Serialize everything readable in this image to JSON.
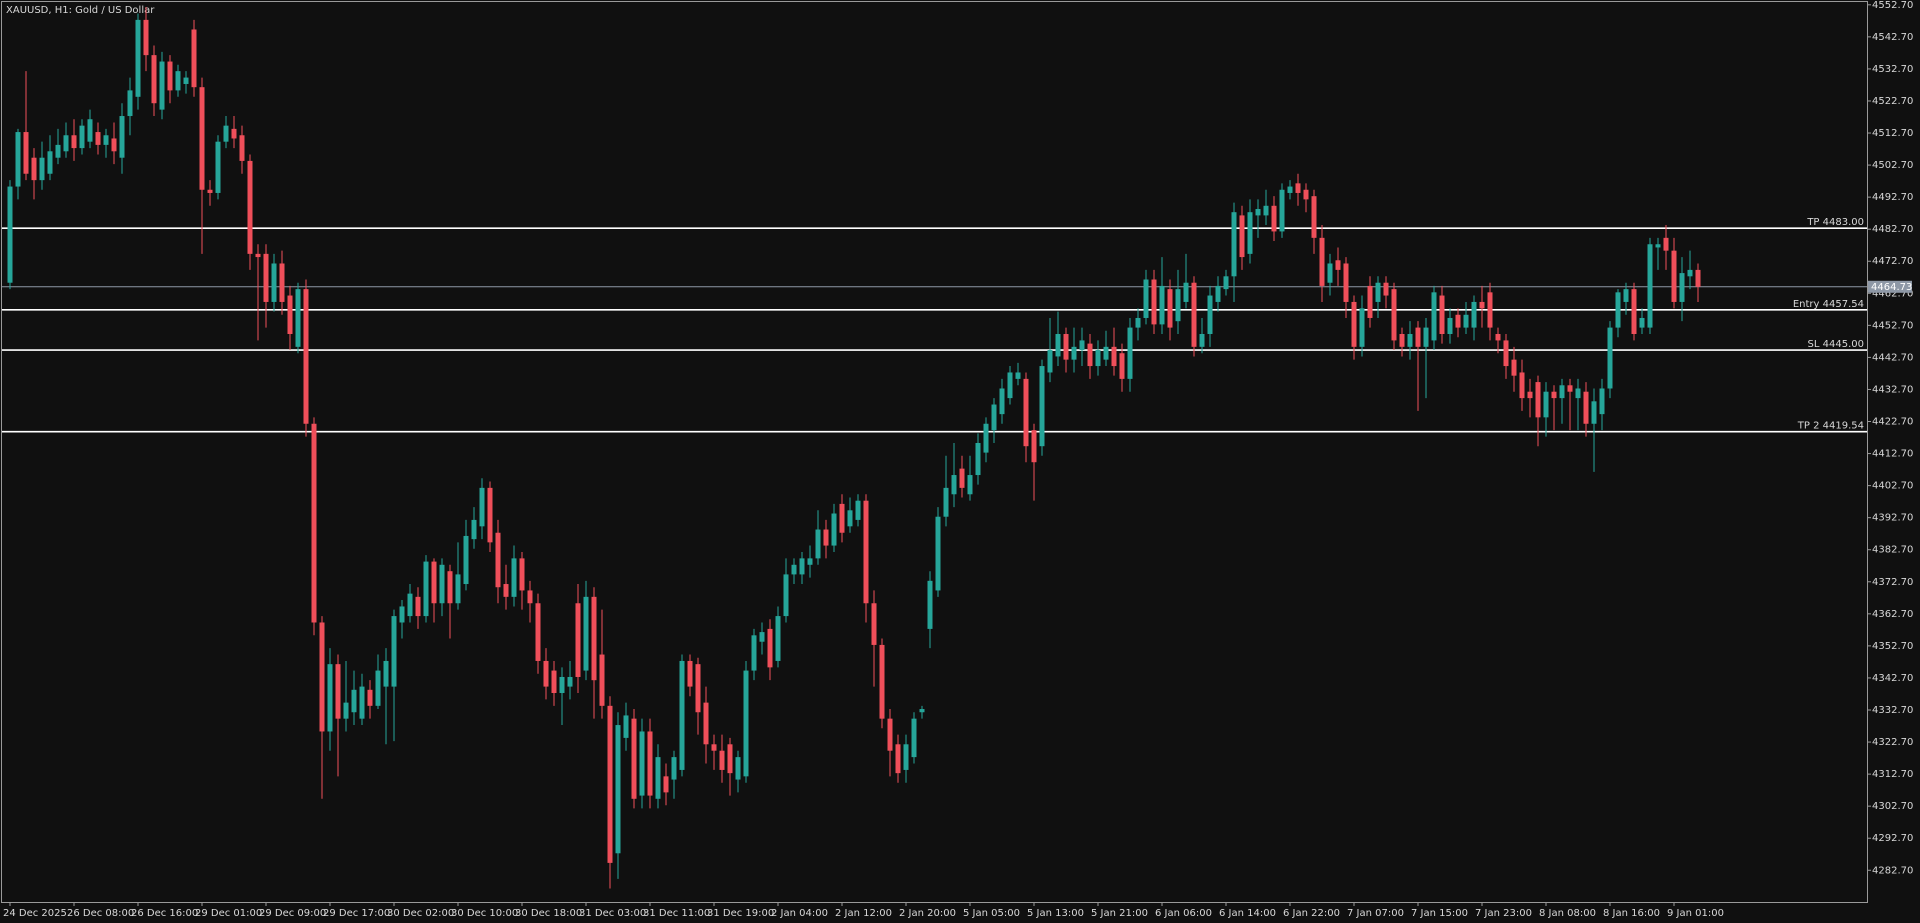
{
  "chart_data": {
    "type": "candlestick",
    "title": "XAUUSD, H1:  Gold / US Dollar",
    "categories": [
      "24 Dec 2025",
      null,
      null,
      null,
      null,
      null,
      null,
      null,
      "26 Dec 08:00",
      null,
      null,
      null,
      null,
      null,
      null,
      null,
      "26 Dec 16:00",
      null,
      null,
      null,
      null,
      null,
      null,
      null,
      "29 Dec 01:00",
      null,
      null,
      null,
      null,
      null,
      null,
      null,
      "29 Dec 09:00",
      null,
      null,
      null,
      null,
      null,
      null,
      null,
      "29 Dec 17:00",
      null,
      null,
      null,
      null,
      null,
      null,
      null,
      "30 Dec 02:00",
      null,
      null,
      null,
      null,
      null,
      null,
      null,
      "30 Dec 10:00",
      null,
      null,
      null,
      null,
      null,
      null,
      null,
      "30 Dec 18:00",
      null,
      null,
      null,
      null,
      null,
      null,
      null,
      "31 Dec 03:00",
      null,
      null,
      null,
      null,
      null,
      null,
      null,
      "31 Dec 11:00",
      null,
      null,
      null,
      null,
      null,
      null,
      null,
      "31 Dec 19:00",
      null,
      null,
      null,
      null,
      null,
      null,
      null,
      "2 Jan 04:00",
      null,
      null,
      null,
      null,
      null,
      null,
      null,
      "2 Jan 12:00",
      null,
      null,
      null,
      null,
      null,
      null,
      null,
      "2 Jan 20:00",
      null,
      null,
      null,
      null,
      null,
      null,
      null,
      "5 Jan 05:00",
      null,
      null,
      null,
      null,
      null,
      null,
      null,
      "5 Jan 13:00",
      null,
      null,
      null,
      null,
      null,
      null,
      null,
      "5 Jan 21:00",
      null,
      null,
      null,
      null,
      null,
      null,
      null,
      "6 Jan 06:00",
      null,
      null,
      null,
      null,
      null,
      null,
      null,
      "6 Jan 14:00",
      null,
      null,
      null,
      null,
      null,
      null,
      null,
      "6 Jan 22:00",
      null,
      null,
      null,
      null,
      null,
      null,
      null,
      "7 Jan 07:00",
      null,
      null,
      null,
      null,
      null,
      null,
      null,
      "7 Jan 15:00",
      null,
      null,
      null,
      null,
      null,
      null,
      null,
      "7 Jan 23:00",
      null,
      null,
      null,
      null,
      null,
      null,
      null,
      "8 Jan 08:00",
      null,
      null,
      null,
      null,
      null,
      null,
      null,
      "8 Jan 16:00",
      null,
      null,
      null,
      null,
      null,
      null,
      null,
      "9 Jan 01:00",
      null,
      null,
      null
    ],
    "open": [
      4466,
      4496,
      4513,
      4505,
      4498,
      4500,
      4505,
      4507,
      4512,
      4508,
      4510,
      4513,
      4509,
      4511,
      4505,
      4518,
      4524,
      4548,
      4537,
      4520,
      4535,
      4526,
      4528,
      4545,
      4527,
      4495,
      4494,
      4510,
      4514,
      4512,
      4504,
      4475,
      4475,
      4460,
      4472,
      4462,
      4446,
      4464,
      4422,
      4360,
      4326,
      4347,
      4330,
      4332,
      4330,
      4339,
      4334,
      4340,
      4340,
      4360,
      4362,
      4368,
      4362,
      4379,
      4366,
      4376,
      4366,
      4372,
      4386,
      4390,
      4402,
      4388,
      4372,
      4368,
      4380,
      4370,
      4366,
      4348,
      4345,
      4338,
      4340,
      4366,
      4345,
      4368,
      4350,
      4334,
      4288,
      4324,
      4330,
      4306,
      4326,
      4305,
      4312,
      4311,
      4314,
      4348,
      4347,
      4335,
      4322,
      4320,
      4322,
      4311,
      4312,
      4345,
      4354,
      4358,
      4348,
      4362,
      4375,
      4375,
      4378,
      4380,
      4389,
      4384,
      4397,
      4390,
      4392,
      4398,
      4366,
      4353,
      4330,
      4322,
      4314,
      4318,
      4332,
      4358,
      4370,
      4393,
      4400,
      4408,
      4400,
      4406,
      4413,
      4420,
      4425,
      4430,
      4436,
      4436,
      4420,
      4415,
      4438,
      4443,
      4450,
      4442,
      4445,
      4447,
      4440,
      4442,
      4446,
      4444,
      4436,
      4452,
      4455,
      4467,
      4453,
      4464,
      4454,
      4460,
      4466,
      4446,
      4450,
      4460,
      4464,
      4468,
      4487,
      4475,
      4487,
      4487,
      4490,
      4482,
      4494,
      4497,
      4495,
      4493,
      4480,
      4466,
      4473,
      4472,
      4460,
      4446,
      4465,
      4460,
      4466,
      4464,
      4450,
      4446,
      4452,
      4446,
      4448,
      4462,
      4450,
      4456,
      4452,
      4452,
      4460,
      4463,
      4450,
      4448,
      4442,
      4438,
      4432,
      4435,
      4424,
      4432,
      4430,
      4434,
      4430,
      4432,
      4422,
      4425,
      4433,
      4452,
      4460,
      4464,
      4452,
      4452,
      4477,
      4480,
      4476,
      4460,
      4468,
      4470
    ],
    "high": [
      4498,
      4514,
      4532,
      4508,
      4510,
      4512,
      4514,
      4516,
      4517,
      4517,
      4520,
      4516,
      4514,
      4516,
      4522,
      4530,
      4550,
      4552,
      4540,
      4538,
      4537,
      4534,
      4532,
      4548,
      4530,
      4498,
      4512,
      4518,
      4518,
      4515,
      4506,
      4478,
      4478,
      4475,
      4476,
      4465,
      4466,
      4467,
      4424,
      4362,
      4352,
      4350,
      4348,
      4345,
      4344,
      4342,
      4350,
      4352,
      4364,
      4367,
      4372,
      4371,
      4381,
      4380,
      4380,
      4378,
      4385,
      4392,
      4396,
      4405,
      4404,
      4392,
      4378,
      4384,
      4382,
      4373,
      4369,
      4352,
      4348,
      4346,
      4348,
      4372,
      4373,
      4371,
      4364,
      4337,
      4332,
      4335,
      4333,
      4330,
      4330,
      4322,
      4316,
      4320,
      4350,
      4350,
      4349,
      4340,
      4325,
      4325,
      4324,
      4320,
      4348,
      4358,
      4360,
      4361,
      4365,
      4380,
      4380,
      4382,
      4384,
      4395,
      4392,
      4397,
      4400,
      4399,
      4400,
      4400,
      4370,
      4355,
      4333,
      4325,
      4325,
      4332,
      4334,
      4376,
      4396,
      4412,
      4416,
      4412,
      4412,
      4419,
      4424,
      4430,
      4436,
      4440,
      4441,
      4438,
      4422,
      4442,
      4455,
      4457,
      4452,
      4452,
      4452,
      4450,
      4448,
      4451,
      4452,
      4447,
      4455,
      4458,
      4470,
      4470,
      4474,
      4467,
      4470,
      4475,
      4468,
      4455,
      4465,
      4468,
      4470,
      4491,
      4490,
      4492,
      4492,
      4495,
      4493,
      4497,
      4498,
      4500,
      4497,
      4495,
      4484,
      4475,
      4477,
      4474,
      4462,
      4462,
      4468,
      4468,
      4468,
      4466,
      4452,
      4454,
      4454,
      4455,
      4465,
      4465,
      4458,
      4458,
      4460,
      4462,
      4465,
      4466,
      4452,
      4450,
      4446,
      4442,
      4436,
      4437,
      4435,
      4434,
      4436,
      4436,
      4436,
      4435,
      4433,
      4436,
      4454,
      4464,
      4466,
      4466,
      4458,
      4480,
      4480,
      4484,
      4480,
      4474,
      4476,
      4472
    ],
    "low": [
      4464,
      4492,
      4498,
      4492,
      4495,
      4498,
      4503,
      4505,
      4504,
      4506,
      4508,
      4506,
      4505,
      4503,
      4500,
      4512,
      4520,
      4532,
      4518,
      4517,
      4522,
      4524,
      4525,
      4524,
      4475,
      4490,
      4492,
      4508,
      4508,
      4500,
      4470,
      4448,
      4452,
      4457,
      4456,
      4445,
      4444,
      4418,
      4356,
      4305,
      4320,
      4312,
      4326,
      4328,
      4328,
      4330,
      4333,
      4322,
      4323,
      4355,
      4360,
      4358,
      4360,
      4360,
      4362,
      4355,
      4364,
      4370,
      4383,
      4386,
      4382,
      4366,
      4364,
      4365,
      4364,
      4360,
      4344,
      4336,
      4334,
      4328,
      4336,
      4338,
      4342,
      4330,
      4330,
      4277,
      4280,
      4320,
      4302,
      4302,
      4302,
      4302,
      4303,
      4305,
      4312,
      4337,
      4325,
      4316,
      4314,
      4310,
      4306,
      4307,
      4310,
      4342,
      4350,
      4342,
      4346,
      4360,
      4372,
      4372,
      4374,
      4378,
      4380,
      4382,
      4385,
      4388,
      4390,
      4360,
      4340,
      4327,
      4312,
      4310,
      4310,
      4316,
      4330,
      4352,
      4368,
      4390,
      4396,
      4399,
      4398,
      4403,
      4410,
      4416,
      4422,
      4428,
      4434,
      4410,
      4398,
      4412,
      4435,
      4440,
      4438,
      4438,
      4440,
      4436,
      4437,
      4440,
      4437,
      4432,
      4432,
      4448,
      4453,
      4450,
      4450,
      4448,
      4450,
      4458,
      4443,
      4444,
      4446,
      4457,
      4462,
      4460,
      4470,
      4472,
      4480,
      4484,
      4479,
      4480,
      4492,
      4490,
      4488,
      4475,
      4460,
      4462,
      4465,
      4455,
      4442,
      4443,
      4452,
      4455,
      4458,
      4445,
      4443,
      4442,
      4426,
      4430,
      4445,
      4447,
      4447,
      4449,
      4450,
      4448,
      4452,
      4448,
      4444,
      4436,
      4432,
      4426,
      4424,
      4415,
      4418,
      4420,
      4422,
      4420,
      4420,
      4418,
      4407,
      4420,
      4430,
      4449,
      4456,
      4448,
      4450,
      4450,
      4470,
      4470,
      4458,
      4454,
      4464,
      4460
    ],
    "close": [
      4496,
      4513,
      4500,
      4498,
      4505,
      4507,
      4509,
      4512,
      4508,
      4515,
      4517,
      4509,
      4512,
      4507,
      4518,
      4526,
      4548,
      4537,
      4522,
      4535,
      4526,
      4532,
      4530,
      4527,
      4495,
      4494,
      4510,
      4515,
      4511,
      4504,
      4475,
      4474,
      4460,
      4472,
      4460,
      4450,
      4464,
      4422,
      4360,
      4326,
      4347,
      4330,
      4335,
      4339,
      4340,
      4334,
      4345,
      4348,
      4362,
      4365,
      4369,
      4362,
      4379,
      4366,
      4378,
      4366,
      4375,
      4387,
      4392,
      4402,
      4385,
      4371,
      4368,
      4380,
      4370,
      4366,
      4348,
      4340,
      4338,
      4343,
      4343,
      4343,
      4368,
      4342,
      4334,
      4285,
      4328,
      4331,
      4305,
      4326,
      4306,
      4318,
      4307,
      4318,
      4348,
      4340,
      4332,
      4322,
      4320,
      4314,
      4313,
      4318,
      4345,
      4356,
      4357,
      4346,
      4362,
      4375,
      4378,
      4380,
      4380,
      4389,
      4384,
      4394,
      4388,
      4395,
      4398,
      4366,
      4353,
      4330,
      4320,
      4313,
      4322,
      4330,
      4333,
      4373,
      4393,
      4402,
      4406,
      4402,
      4406,
      4416,
      4422,
      4428,
      4433,
      4438,
      4438,
      4415,
      4410,
      4440,
      4445,
      4450,
      4442,
      4446,
      4448,
      4440,
      4445,
      4446,
      4440,
      4436,
      4452,
      4455,
      4467,
      4453,
      4465,
      4452,
      4464,
      4466,
      4446,
      4450,
      4462,
      4465,
      4468,
      4488,
      4474,
      4488,
      4489,
      4490,
      4482,
      4495,
      4496,
      4494,
      4492,
      4480,
      4465,
      4472,
      4470,
      4460,
      4446,
      4458,
      4455,
      4466,
      4462,
      4448,
      4446,
      4450,
      4446,
      4452,
      4463,
      4450,
      4455,
      4452,
      4456,
      4460,
      4458,
      4452,
      4448,
      4440,
      4437,
      4430,
      4430,
      4424,
      4432,
      4430,
      4434,
      4432,
      4433,
      4422,
      4429,
      4433,
      4452,
      4463,
      4464,
      4450,
      4455,
      4478,
      4478,
      4476,
      4460,
      4469,
      4470,
      4464.73
    ],
    "up_color": "#26a69a",
    "down_color": "#ef4f5a",
    "ylim": [
      4272.8,
      4554.2
    ],
    "yticks": [
      {
        "value": 4552.7,
        "label": "4552.70"
      },
      {
        "value": 4542.7,
        "label": "4542.70"
      },
      {
        "value": 4532.7,
        "label": "4532.70"
      },
      {
        "value": 4522.7,
        "label": "4522.70"
      },
      {
        "value": 4512.7,
        "label": "4512.70"
      },
      {
        "value": 4502.7,
        "label": "4502.70"
      },
      {
        "value": 4492.7,
        "label": "4492.70"
      },
      {
        "value": 4482.7,
        "label": "4482.70"
      },
      {
        "value": 4472.7,
        "label": "4472.70"
      },
      {
        "value": 4462.7,
        "label": "4462.70"
      },
      {
        "value": 4452.7,
        "label": "4452.70"
      },
      {
        "value": 4442.7,
        "label": "4442.70"
      },
      {
        "value": 4432.7,
        "label": "4432.70"
      },
      {
        "value": 4422.7,
        "label": "4422.70"
      },
      {
        "value": 4412.7,
        "label": "4412.70"
      },
      {
        "value": 4402.7,
        "label": "4402.70"
      },
      {
        "value": 4392.7,
        "label": "4392.70"
      },
      {
        "value": 4382.7,
        "label": "4382.70"
      },
      {
        "value": 4372.7,
        "label": "4372.70"
      },
      {
        "value": 4362.7,
        "label": "4362.70"
      },
      {
        "value": 4352.7,
        "label": "4352.70"
      },
      {
        "value": 4342.7,
        "label": "4342.70"
      },
      {
        "value": 4332.7,
        "label": "4332.70"
      },
      {
        "value": 4322.7,
        "label": "4322.70"
      },
      {
        "value": 4312.7,
        "label": "4312.70"
      },
      {
        "value": 4302.7,
        "label": "4302.70"
      },
      {
        "value": 4292.7,
        "label": "4292.70"
      },
      {
        "value": 4282.7,
        "label": "4282.70"
      }
    ],
    "levels": [
      {
        "label": "TP 4483.00",
        "value": 4483
      },
      {
        "label": "Entry 4457.54",
        "value": 4457.54
      },
      {
        "label": "SL 4445.00",
        "value": 4445
      },
      {
        "label": "TP 2 4419.54",
        "value": 4419.54
      }
    ],
    "level_color": "#ffffff",
    "current_price": 4464.73,
    "current_price_color": "#8e98a6",
    "grid": false
  }
}
